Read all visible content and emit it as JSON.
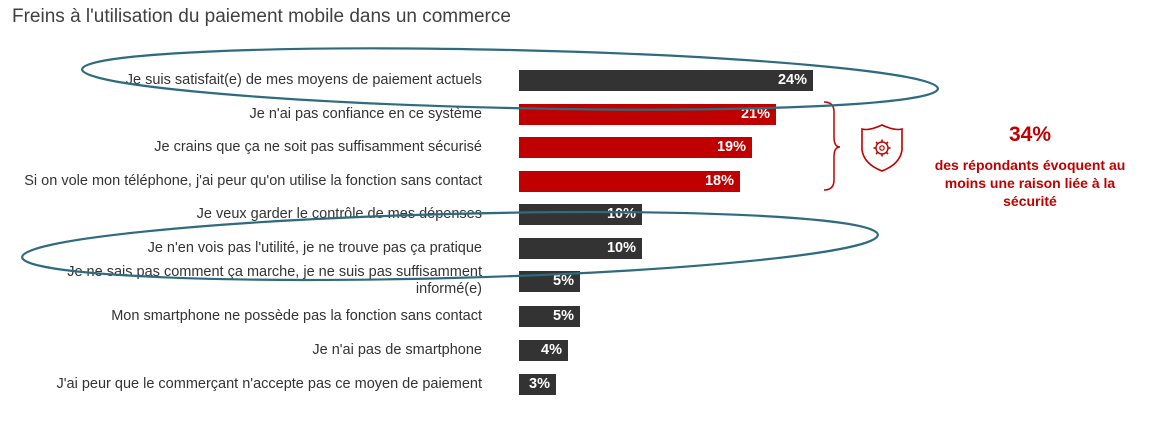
{
  "chart_data": {
    "type": "bar",
    "orientation": "horizontal",
    "title": "Freins à l'utilisation du paiement mobile dans un commerce",
    "unit": "%",
    "xlim": [
      0,
      24
    ],
    "categories": [
      "Je suis satisfait(e) de mes moyens de paiement actuels",
      "Je n'ai pas confiance en ce système",
      "Je crains que ça ne soit pas suffisamment sécurisé",
      "Si on vole mon téléphone, j'ai peur qu'on utilise la fonction sans contact",
      "Je veux garder le contrôle de mes dépenses",
      "Je n'en vois pas l'utilité, je ne trouve pas ça pratique",
      "Je ne sais pas comment ça marche, je ne suis pas suffisamment informé(e)",
      "Mon smartphone ne possède pas la fonction sans contact",
      "Je n'ai pas de smartphone",
      "J'ai peur que le commerçant n'accepte pas ce moyen de paiement"
    ],
    "values": [
      24,
      21,
      19,
      18,
      10,
      10,
      5,
      5,
      4,
      3
    ],
    "value_labels": [
      "24%",
      "21%",
      "19%",
      "18%",
      "10%",
      "10%",
      "5%",
      "5%",
      "4%",
      "3%"
    ],
    "groups": [
      "other",
      "security",
      "security",
      "security",
      "other",
      "other",
      "other",
      "other",
      "other",
      "other"
    ],
    "highlighted": [
      0,
      5
    ],
    "colors": {
      "other": "#333333",
      "security": "#c00000",
      "highlight_ellipse": "#2e6b7e"
    }
  },
  "callout": {
    "percent": "34%",
    "text": "des répondants évoquent au moins une raison liée à la sécurité",
    "icon": "gear-shield-icon"
  }
}
